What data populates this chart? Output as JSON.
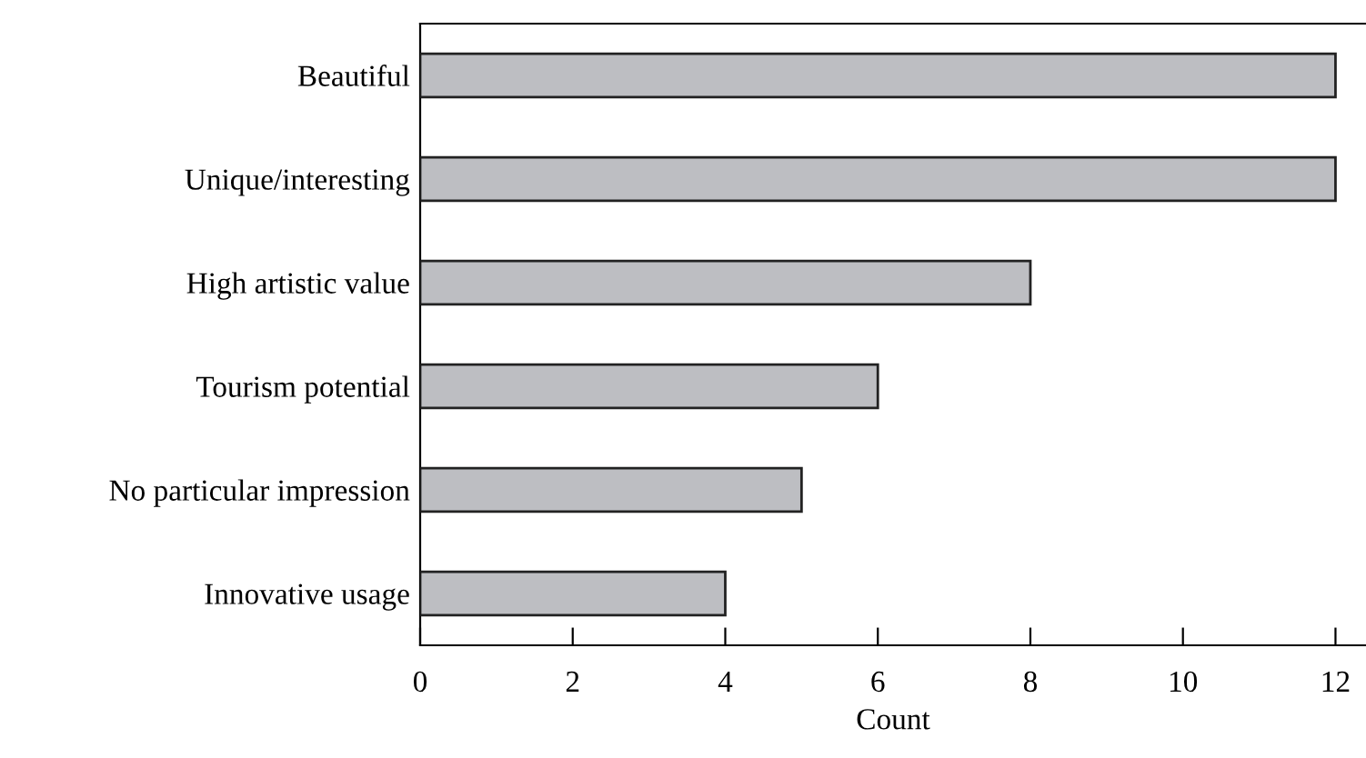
{
  "chart_data": {
    "type": "bar",
    "orientation": "horizontal",
    "xlabel": "Count",
    "categories": [
      "Beautiful",
      "Unique/interesting",
      "High artistic value",
      "Tourism potential",
      "No particular impression",
      "Innovative usage"
    ],
    "values": [
      12,
      12,
      8,
      6,
      5,
      4
    ],
    "color": "#bdbec2",
    "xlim": [
      0,
      12.4
    ],
    "xticks": [
      0,
      2,
      4,
      6,
      8,
      10,
      12
    ],
    "grid": false,
    "legend": false
  }
}
